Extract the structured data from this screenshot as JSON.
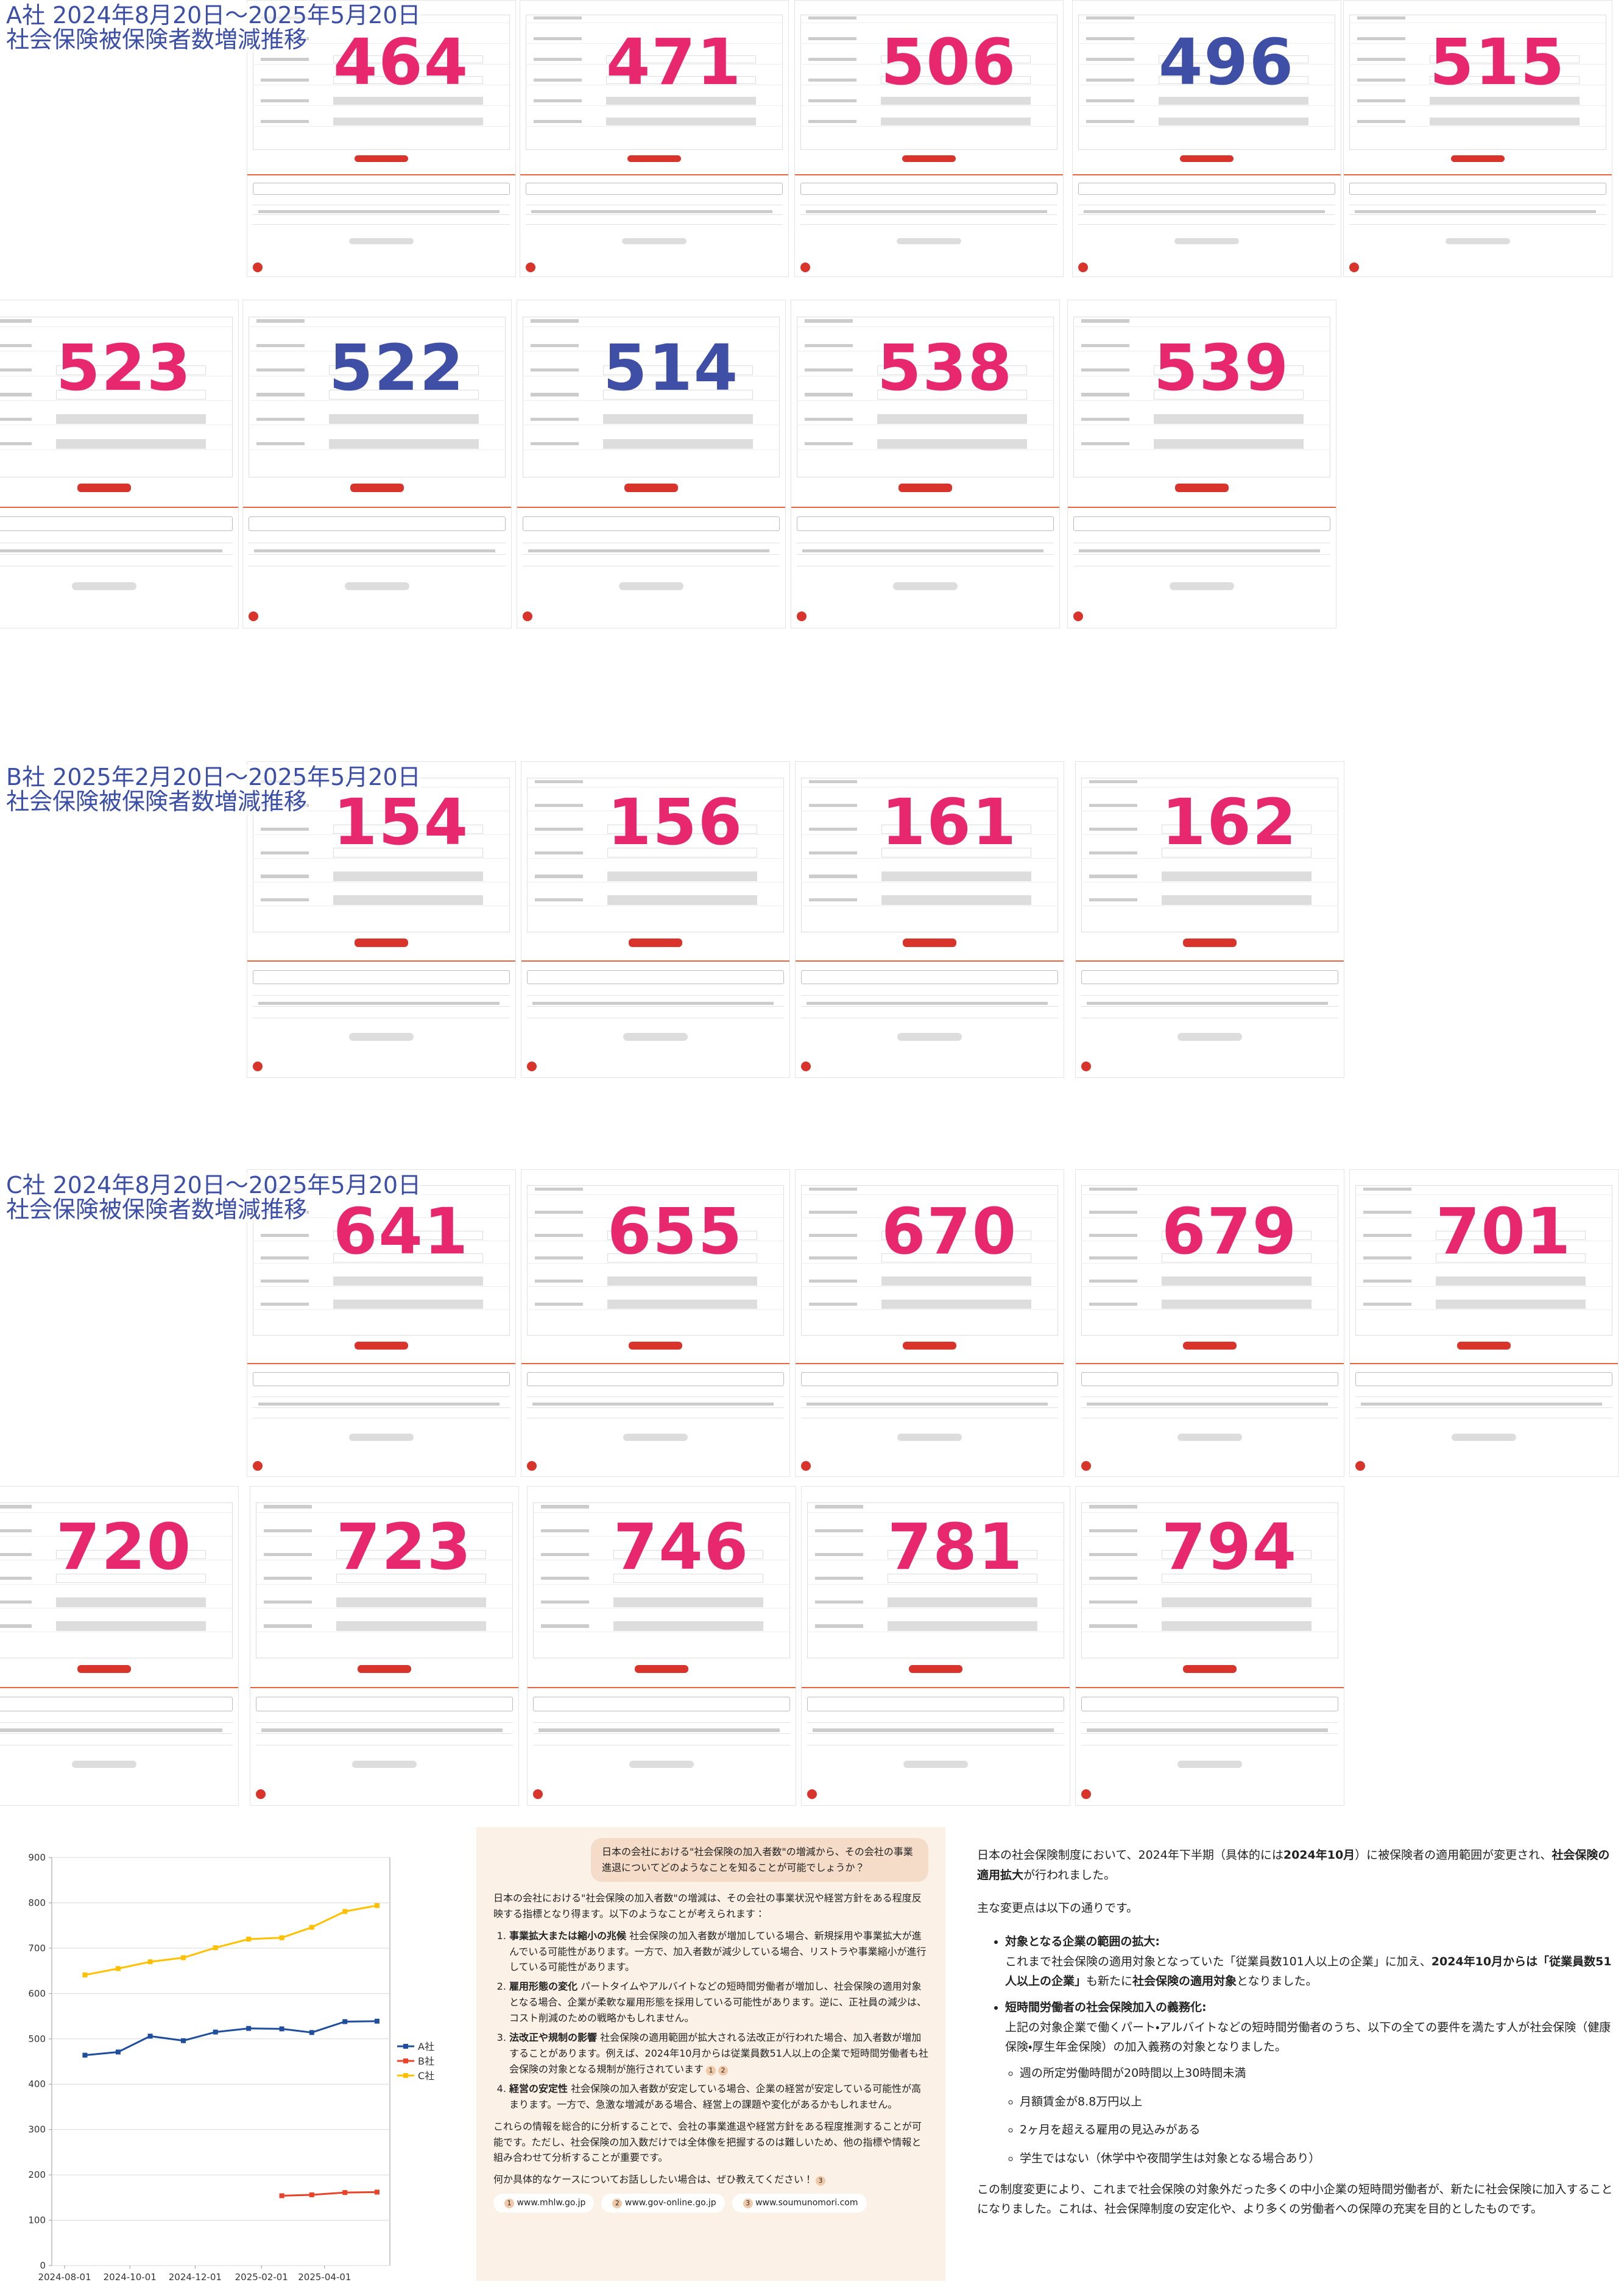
{
  "sections": [
    {
      "label": "A社 2024年8月20日～2025年5月20日",
      "subtitle": "社会保険被保険者数増減推移",
      "counts": [
        464,
        471,
        506,
        496,
        515,
        523,
        522,
        514,
        538,
        539
      ],
      "count_colors": [
        "#e8286e",
        "#e8286e",
        "#e8286e",
        "#3f4fa6",
        "#e8286e",
        "#e8286e",
        "#3f4fa6",
        "#3f4fa6",
        "#e8286e",
        "#e8286e"
      ]
    },
    {
      "label": "B社 2025年2月20日～2025年5月20日",
      "subtitle": "社会保険被保険者数増減推移",
      "counts": [
        154,
        156,
        161,
        162
      ],
      "count_colors": [
        "#e8286e",
        "#e8286e",
        "#e8286e",
        "#e8286e"
      ]
    },
    {
      "label": "C社 2024年8月20日～2025年5月20日",
      "subtitle": "社会保険被保険者数増減推移",
      "counts": [
        641,
        655,
        670,
        679,
        701,
        720,
        723,
        746,
        781,
        794
      ],
      "count_colors": [
        "#e8286e",
        "#e8286e",
        "#e8286e",
        "#e8286e",
        "#e8286e",
        "#e8286e",
        "#e8286e",
        "#e8286e",
        "#e8286e",
        "#e8286e"
      ]
    }
  ],
  "chart_data": {
    "type": "line",
    "x": [
      "2024-08-20",
      "2024-09-20",
      "2024-10-20",
      "2024-11-20",
      "2024-12-20",
      "2025-01-20",
      "2025-02-20",
      "2025-03-20",
      "2025-04-20",
      "2025-05-20"
    ],
    "series": [
      {
        "name": "A社",
        "color": "#1f4e9c",
        "values": [
          464,
          471,
          506,
          496,
          515,
          523,
          522,
          514,
          538,
          539
        ]
      },
      {
        "name": "B社",
        "color": "#e8442a",
        "values": [
          null,
          null,
          null,
          null,
          null,
          null,
          154,
          156,
          161,
          162
        ]
      },
      {
        "name": "C社",
        "color": "#ffc000",
        "values": [
          641,
          655,
          670,
          679,
          701,
          720,
          723,
          746,
          781,
          794
        ]
      }
    ],
    "xlim": [
      "2024-07-20",
      "2025-06-01"
    ],
    "xticks": [
      "2024-08-01",
      "2024-10-01",
      "2024-12-01",
      "2025-02-01",
      "2025-04-01"
    ],
    "ylim": [
      0,
      900
    ],
    "yticks": [
      0,
      100,
      200,
      300,
      400,
      500,
      600,
      700,
      800,
      900
    ],
    "grid": true,
    "legend": "right"
  },
  "chat": {
    "question": "日本の会社における\"社会保険の加入者数\"の増減から、その会社の事業進退についてどのようなことを知ることが可能でしょうか？",
    "intro": "日本の会社における\"社会保険の加入者数\"の増減は、その会社の事業状況や経営方針をある程度反映する指標となり得ます。以下のようなことが考えられます：",
    "items": [
      {
        "title": "事業拡大または縮小の兆候",
        "body": "社会保険の加入者数が増加している場合、新規採用や事業拡大が進んでいる可能性があります。一方で、加入者数が減少している場合、リストラや事業縮小が進行している可能性があります。",
        "citations": []
      },
      {
        "title": "雇用形態の変化",
        "body": "パートタイムやアルバイトなどの短時間労働者が増加し、社会保険の適用対象となる場合、企業が柔軟な雇用形態を採用している可能性があります。逆に、正社員の減少は、コスト削減のための戦略かもしれません。",
        "citations": []
      },
      {
        "title": "法改正や規制の影響",
        "body": "社会保険の適用範囲が拡大される法改正が行われた場合、加入者数が増加することがあります。例えば、2024年10月からは従業員数51人以上の企業で短時間労働者も社会保険の対象となる規制が施行されています",
        "citations": [
          "1",
          "2"
        ]
      },
      {
        "title": "経営の安定性",
        "body": "社会保険の加入者数が安定している場合、企業の経営が安定している可能性が高まります。一方で、急激な増減がある場合、経営上の課題や変化があるかもしれません。",
        "citations": []
      }
    ],
    "closing": "これらの情報を総合的に分析することで、会社の事業進退や経営方針をある程度推測することが可能です。ただし、社会保険の加入数だけでは全体像を把握するのは難しいため、他の指標や情報と組み合わせて分析することが重要です。",
    "ask": "何か具体的なケースについてお話ししたい場合は、ぜひ教えてください！",
    "ask_citation": "3",
    "links": [
      {
        "n": "1",
        "url": "www.mhlw.go.jp"
      },
      {
        "n": "2",
        "url": "www.gov-online.go.jp"
      },
      {
        "n": "3",
        "url": "www.soumunomori.com"
      }
    ]
  },
  "notes": {
    "intro": [
      "日本の社会保険制度において、2024年下半期（具体的には",
      {
        "bold": "2024年10月"
      },
      "）に被保険者の適用範囲が変更され、",
      {
        "bold": "社会保険の適用拡大"
      },
      "が行われました。"
    ],
    "lead": "主な変更点は以下の通りです。",
    "bullets": [
      {
        "title": "対象となる企業の範囲の拡大:",
        "body": [
          "これまで社会保険の適用対象となっていた「従業員数101人以上の企業」に加え、",
          {
            "bold": "2024年10月からは「従業員数51人以上の企業」"
          },
          "も新たに",
          {
            "bold": "社会保険の適用対象"
          },
          "となりました。"
        ],
        "subs": []
      },
      {
        "title": "短時間労働者の社会保険加入の義務化:",
        "body": [
          "上記の対象企業で働くパート・アルバイトなどの短時間労働者のうち、以下の全ての要件を満たす人が社会保険（健康保険・厚生年金保険）の加入義務の対象となりました。"
        ],
        "subs": [
          "週の所定労働時間が20時間以上30時間未満",
          "月額賃金が8.8万円以上",
          "2ヶ月を超える雇用の見込みがある",
          "学生ではない（休学中や夜間学生は対象となる場合あり）"
        ]
      }
    ],
    "closing": "この制度変更により、これまで社会保険の対象外だった多くの中小企業の短時間労働者が、新たに社会保険に加入することになりました。これは、社会保障制度の安定化や、より多くの労働者への保障の充実を目的としたものです。"
  }
}
